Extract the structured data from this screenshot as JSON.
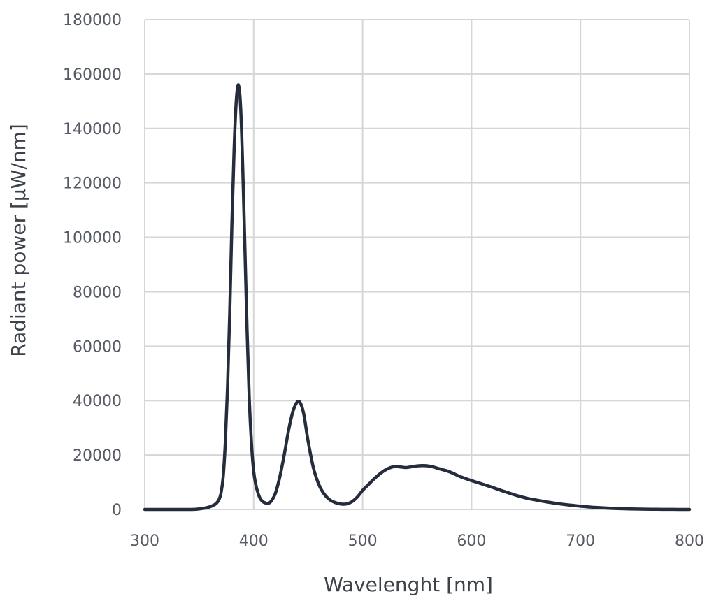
{
  "chart_data": {
    "type": "line",
    "title": "",
    "xlabel": "Wavelenght [nm]",
    "ylabel": "Radiant power [µW/nm]",
    "xlim": [
      300,
      800
    ],
    "ylim": [
      0,
      180000
    ],
    "xticks": [
      300,
      400,
      500,
      600,
      700,
      800
    ],
    "yticks": [
      0,
      20000,
      40000,
      60000,
      80000,
      100000,
      120000,
      140000,
      160000,
      180000
    ],
    "grid": true,
    "legend": "none",
    "colors": {
      "line": "#252d3c",
      "grid": "#d6d6d6"
    },
    "series": [
      {
        "x": [
          300,
          340,
          350,
          355,
          360,
          365,
          368,
          370,
          372,
          374,
          376,
          378,
          380,
          382,
          384,
          386,
          388,
          390,
          392,
          394,
          396,
          398,
          400,
          402,
          404,
          406,
          408,
          410,
          413,
          416,
          420,
          424,
          428,
          432,
          436,
          440,
          443,
          446,
          450,
          455,
          460,
          465,
          470,
          475,
          480,
          485,
          490,
          495,
          500,
          505,
          510,
          515,
          520,
          525,
          530,
          535,
          540,
          545,
          550,
          555,
          560,
          565,
          570,
          580,
          590,
          600,
          610,
          620,
          630,
          640,
          650,
          660,
          670,
          680,
          690,
          700,
          710,
          720,
          730,
          740,
          750,
          760,
          770,
          780,
          790,
          800
        ],
        "y": [
          0,
          0,
          200,
          500,
          1000,
          2000,
          3500,
          6000,
          12000,
          25000,
          45000,
          72000,
          105000,
          132000,
          150000,
          156000,
          148000,
          125000,
          95000,
          65000,
          40000,
          24000,
          14000,
          9000,
          6000,
          4000,
          3000,
          2500,
          2200,
          3000,
          6000,
          12000,
          20000,
          29000,
          36000,
          39500,
          39000,
          35000,
          25000,
          15000,
          9000,
          5500,
          3500,
          2500,
          2000,
          2000,
          2800,
          4500,
          7000,
          9000,
          11000,
          12800,
          14300,
          15300,
          15800,
          15600,
          15400,
          15700,
          16000,
          16100,
          16000,
          15600,
          15000,
          13800,
          12000,
          10600,
          9300,
          8000,
          6600,
          5300,
          4200,
          3400,
          2700,
          2100,
          1600,
          1200,
          850,
          600,
          400,
          250,
          150,
          100,
          60,
          30,
          10,
          0
        ]
      }
    ]
  }
}
